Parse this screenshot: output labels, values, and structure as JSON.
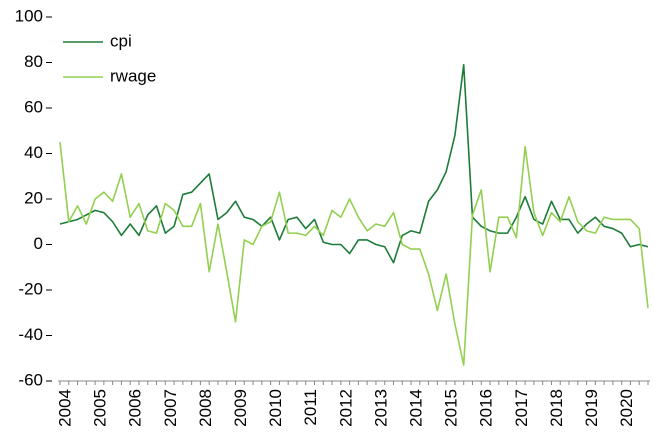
{
  "chart_data": {
    "type": "line",
    "categories": [
      "2004",
      null,
      null,
      null,
      "2005",
      null,
      null,
      null,
      "2006",
      null,
      null,
      null,
      "2007",
      null,
      null,
      null,
      "2008",
      null,
      null,
      null,
      "2009",
      null,
      null,
      null,
      "2010",
      null,
      null,
      null,
      "2011",
      null,
      null,
      null,
      "2012",
      null,
      null,
      null,
      "2013",
      null,
      null,
      null,
      "2014",
      null,
      null,
      null,
      "2015",
      null,
      null,
      null,
      "2016",
      null,
      null,
      null,
      "2017",
      null,
      null,
      null,
      "2018",
      null,
      null,
      null,
      "2019",
      null,
      null,
      null,
      "2020",
      null,
      null,
      null
    ],
    "series": [
      {
        "name": "cpi",
        "color": "#1e7b3a",
        "values": [
          9,
          10,
          11,
          13,
          15,
          14,
          10,
          4,
          9,
          4,
          13,
          17,
          5,
          8,
          22,
          23,
          27,
          31,
          11,
          14,
          19,
          12,
          11,
          8,
          12,
          2,
          11,
          12,
          7,
          11,
          1,
          0,
          0,
          -4,
          2,
          2,
          0,
          -1,
          -8,
          4,
          6,
          5,
          19,
          24,
          32,
          48,
          79,
          12,
          8,
          6,
          5,
          5,
          12,
          21,
          11,
          9,
          19,
          11,
          11,
          5,
          9,
          12,
          8,
          7,
          5,
          -1,
          0,
          -1
        ]
      },
      {
        "name": "rwage",
        "color": "#92d050",
        "values": [
          45,
          10,
          17,
          9,
          20,
          23,
          19,
          31,
          12,
          18,
          6,
          5,
          18,
          15,
          8,
          8,
          18,
          -12,
          9,
          -12,
          -34,
          2,
          0,
          8,
          10,
          23,
          5,
          5,
          4,
          8,
          4,
          15,
          12,
          20,
          12,
          6,
          9,
          8,
          14,
          0,
          -2,
          -2,
          -13,
          -29,
          -13,
          -35,
          -53,
          13,
          24,
          -12,
          12,
          12,
          3,
          43,
          14,
          4,
          14,
          10,
          21,
          10,
          6,
          5,
          12,
          11,
          11,
          11,
          7,
          -28
        ]
      }
    ],
    "ylim": [
      -60,
      100
    ],
    "yticks": [
      -60,
      -40,
      -20,
      0,
      20,
      40,
      60,
      80,
      100
    ],
    "grid": false,
    "legend": "top-left"
  }
}
